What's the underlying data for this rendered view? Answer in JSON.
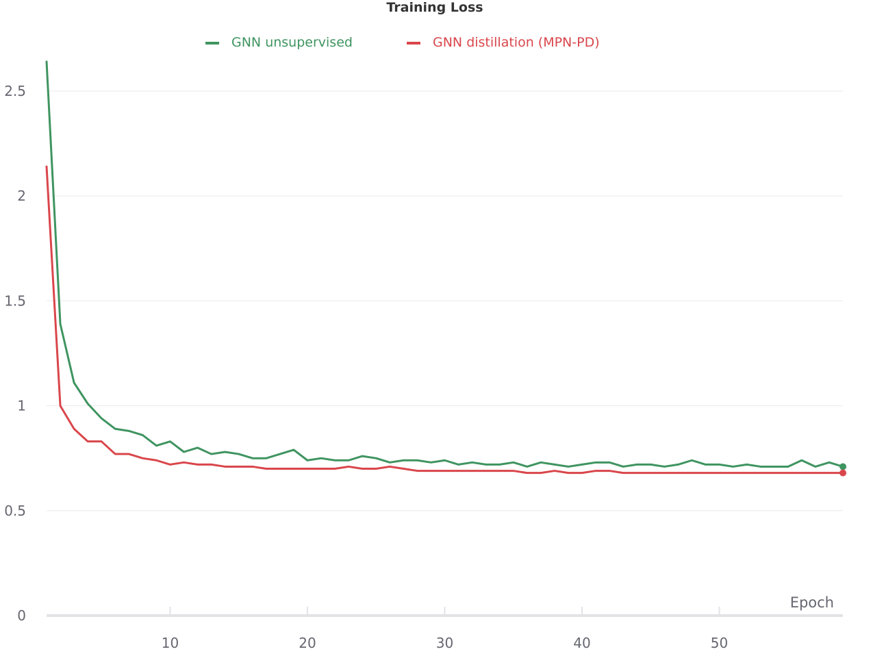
{
  "chart_data": {
    "type": "line",
    "title": "Training Loss",
    "xlabel": "Epoch",
    "ylabel": "",
    "xlim": [
      1,
      59
    ],
    "ylim": [
      0,
      2.65
    ],
    "xticks": [
      10,
      20,
      30,
      40,
      50
    ],
    "yticks": [
      0,
      0.5,
      1,
      1.5,
      2,
      2.5
    ],
    "ytick_labels": [
      "0",
      "0.5",
      "1",
      "1.5",
      "2",
      "2.5"
    ],
    "grid": "horizontal",
    "legend": "top-center",
    "x": [
      1,
      2,
      3,
      4,
      5,
      6,
      7,
      8,
      9,
      10,
      11,
      12,
      13,
      14,
      15,
      16,
      17,
      18,
      19,
      20,
      21,
      22,
      23,
      24,
      25,
      26,
      27,
      28,
      29,
      30,
      31,
      32,
      33,
      34,
      35,
      36,
      37,
      38,
      39,
      40,
      41,
      42,
      43,
      44,
      45,
      46,
      47,
      48,
      49,
      50,
      51,
      52,
      53,
      54,
      55,
      56,
      57,
      58,
      59
    ],
    "series": [
      {
        "name": "GNN unsupervised",
        "color": "#3f9460",
        "values": [
          2.64,
          1.39,
          1.11,
          1.01,
          0.94,
          0.89,
          0.88,
          0.86,
          0.81,
          0.83,
          0.78,
          0.8,
          0.77,
          0.78,
          0.77,
          0.75,
          0.75,
          0.77,
          0.79,
          0.74,
          0.75,
          0.74,
          0.74,
          0.76,
          0.75,
          0.73,
          0.74,
          0.74,
          0.73,
          0.74,
          0.72,
          0.73,
          0.72,
          0.72,
          0.73,
          0.71,
          0.73,
          0.72,
          0.71,
          0.72,
          0.73,
          0.73,
          0.71,
          0.72,
          0.72,
          0.71,
          0.72,
          0.74,
          0.72,
          0.72,
          0.71,
          0.72,
          0.71,
          0.71,
          0.71,
          0.74,
          0.71,
          0.73,
          0.71
        ]
      },
      {
        "name": "GNN distillation (MPN-PD)",
        "color": "#d9464b",
        "values": [
          2.14,
          1.0,
          0.89,
          0.83,
          0.83,
          0.77,
          0.77,
          0.75,
          0.74,
          0.72,
          0.73,
          0.72,
          0.72,
          0.71,
          0.71,
          0.71,
          0.7,
          0.7,
          0.7,
          0.7,
          0.7,
          0.7,
          0.71,
          0.7,
          0.7,
          0.71,
          0.7,
          0.69,
          0.69,
          0.69,
          0.69,
          0.69,
          0.69,
          0.69,
          0.69,
          0.68,
          0.68,
          0.69,
          0.68,
          0.68,
          0.69,
          0.69,
          0.68,
          0.68,
          0.68,
          0.68,
          0.68,
          0.68,
          0.68,
          0.68,
          0.68,
          0.68,
          0.68,
          0.68,
          0.68,
          0.68,
          0.68,
          0.68,
          0.68
        ]
      }
    ]
  }
}
